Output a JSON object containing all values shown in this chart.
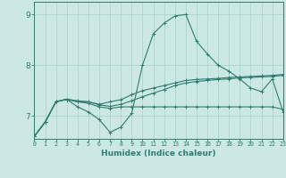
{
  "xlabel": "Humidex (Indice chaleur)",
  "background_color": "#cce8e4",
  "line_color": "#2e7d6e",
  "grid_color": "#aed4ce",
  "x_ticks": [
    0,
    1,
    2,
    3,
    4,
    5,
    6,
    7,
    8,
    9,
    10,
    11,
    12,
    13,
    14,
    15,
    16,
    17,
    18,
    19,
    20,
    21,
    22,
    23
  ],
  "y_ticks": [
    7,
    8,
    9
  ],
  "xlim": [
    0,
    23
  ],
  "ylim": [
    6.55,
    9.25
  ],
  "series": [
    [
      6.6,
      6.88,
      7.28,
      7.33,
      7.18,
      7.08,
      6.93,
      6.68,
      6.78,
      7.05,
      8.0,
      8.62,
      8.83,
      8.97,
      9.0,
      8.47,
      8.22,
      8.0,
      7.88,
      7.73,
      7.55,
      7.48,
      7.73,
      7.08
    ],
    [
      6.6,
      6.88,
      7.28,
      7.33,
      7.28,
      7.28,
      7.23,
      7.28,
      7.32,
      7.42,
      7.5,
      7.55,
      7.6,
      7.65,
      7.7,
      7.72,
      7.73,
      7.74,
      7.76,
      7.77,
      7.78,
      7.79,
      7.8,
      7.82
    ],
    [
      6.6,
      6.88,
      7.28,
      7.33,
      7.28,
      7.25,
      7.18,
      7.15,
      7.18,
      7.18,
      7.18,
      7.18,
      7.18,
      7.18,
      7.18,
      7.18,
      7.18,
      7.18,
      7.18,
      7.18,
      7.18,
      7.18,
      7.18,
      7.13
    ],
    [
      6.6,
      6.88,
      7.28,
      7.33,
      7.3,
      7.28,
      7.22,
      7.19,
      7.23,
      7.3,
      7.38,
      7.45,
      7.52,
      7.6,
      7.65,
      7.68,
      7.7,
      7.72,
      7.73,
      7.75,
      7.76,
      7.77,
      7.78,
      7.8
    ]
  ],
  "marker": "+",
  "markersize": 3,
  "linewidth": 0.8
}
